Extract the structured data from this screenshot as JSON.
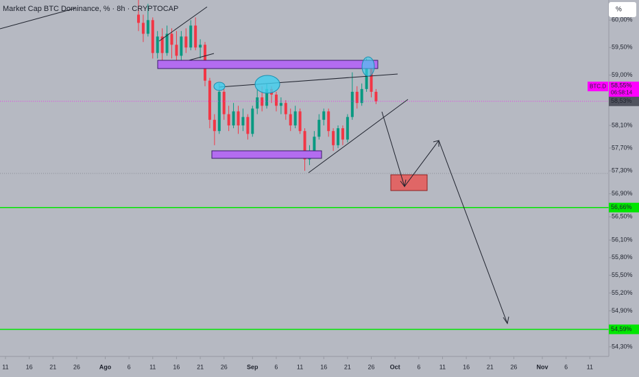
{
  "chart_data": {
    "type": "candlestick",
    "title": "Market Cap BTC Dominance, % · 8h · CRYPTOCAP",
    "unit_button": "%",
    "log_scale": true,
    "up_color": "#089981",
    "down_color": "#f23645",
    "ylim": [
      54.14,
      60.37
    ],
    "yticks": [
      {
        "value": 60,
        "label": "60,00%"
      },
      {
        "value": 59.5,
        "label": "59,50%"
      },
      {
        "value": 59,
        "label": "59,00%"
      },
      {
        "value": 58.1,
        "label": "58,10%"
      },
      {
        "value": 57.7,
        "label": "57,70%"
      },
      {
        "value": 57.3,
        "label": "57,30%"
      },
      {
        "value": 56.9,
        "label": "56,90%"
      },
      {
        "value": 56.5,
        "label": "56,50%"
      },
      {
        "value": 56.1,
        "label": "56,10%"
      },
      {
        "value": 55.8,
        "label": "55,80%"
      },
      {
        "value": 55.5,
        "label": "55,50%"
      },
      {
        "value": 55.2,
        "label": "55,20%"
      },
      {
        "value": 54.9,
        "label": "54,90%"
      },
      {
        "value": 54.3,
        "label": "54,30%"
      }
    ],
    "xlim": [
      -1.15,
      127
    ],
    "xticks": [
      {
        "value": 0,
        "label": "11"
      },
      {
        "value": 5,
        "label": "16"
      },
      {
        "value": 10,
        "label": "21"
      },
      {
        "value": 15,
        "label": "26"
      },
      {
        "value": 21,
        "label": "Ago"
      },
      {
        "value": 26,
        "label": "6"
      },
      {
        "value": 31,
        "label": "11"
      },
      {
        "value": 36,
        "label": "16"
      },
      {
        "value": 41,
        "label": "21"
      },
      {
        "value": 46,
        "label": "26"
      },
      {
        "value": 52,
        "label": "Sep"
      },
      {
        "value": 57,
        "label": "6"
      },
      {
        "value": 62,
        "label": "11"
      },
      {
        "value": 67,
        "label": "16"
      },
      {
        "value": 72,
        "label": "21"
      },
      {
        "value": 77,
        "label": "26"
      },
      {
        "value": 82,
        "label": "Oct"
      },
      {
        "value": 87,
        "label": "6"
      },
      {
        "value": 92,
        "label": "11"
      },
      {
        "value": 97,
        "label": "16"
      },
      {
        "value": 102,
        "label": "21"
      },
      {
        "value": 107,
        "label": "26"
      },
      {
        "value": 113,
        "label": "Nov"
      },
      {
        "value": 118,
        "label": "6"
      },
      {
        "value": 123,
        "label": "11"
      }
    ],
    "x": [
      28,
      29,
      30,
      31,
      32,
      33,
      34,
      35,
      36,
      37,
      38,
      39,
      40,
      41,
      42,
      43,
      44,
      45,
      46,
      47,
      48,
      49,
      50,
      51,
      52,
      53,
      54,
      55,
      56,
      57,
      58,
      59,
      60,
      61,
      62,
      63,
      64,
      65,
      66,
      67,
      68,
      69,
      70,
      71,
      72,
      73,
      74,
      75,
      76,
      77,
      78
    ],
    "open": [
      60.1,
      59.95,
      59.75,
      60.0,
      59.4,
      59.7,
      59.4,
      59.75,
      59.55,
      59.35,
      59.7,
      59.5,
      59.9,
      59.5,
      59.55,
      58.9,
      58.2,
      58.0,
      58.7,
      58.3,
      58.1,
      58.35,
      58.1,
      58.25,
      57.95,
      58.4,
      58.6,
      58.45,
      58.75,
      58.65,
      58.45,
      58.5,
      58.3,
      58.1,
      58.35,
      58.0,
      57.5,
      57.65,
      57.9,
      58.2,
      58.35,
      58.0,
      57.75,
      58.05,
      57.85,
      58.25,
      58.7,
      58.5,
      58.75,
      59.2,
      58.7
    ],
    "high": [
      60.37,
      60.1,
      60.3,
      60.05,
      59.8,
      59.85,
      59.9,
      59.85,
      59.8,
      59.8,
      59.85,
      60.0,
      60.05,
      59.65,
      59.6,
      58.95,
      58.3,
      58.85,
      58.75,
      58.45,
      58.5,
      58.45,
      58.4,
      58.3,
      58.45,
      58.75,
      58.8,
      58.85,
      58.8,
      58.7,
      58.6,
      58.55,
      58.4,
      58.45,
      58.4,
      58.05,
      57.75,
      58.0,
      58.3,
      58.4,
      58.4,
      58.05,
      58.1,
      58.1,
      58.3,
      59.05,
      58.8,
      58.85,
      59.3,
      59.25,
      58.75
    ],
    "low": [
      59.8,
      59.6,
      59.7,
      59.3,
      59.3,
      59.25,
      59.35,
      59.3,
      59.2,
      59.25,
      59.4,
      59.45,
      59.45,
      59.3,
      58.8,
      58.05,
      57.75,
      57.95,
      58.2,
      58.0,
      58.05,
      57.95,
      58.0,
      57.85,
      57.9,
      58.3,
      58.35,
      58.4,
      58.5,
      58.35,
      58.3,
      58.2,
      58.0,
      58.05,
      57.95,
      57.3,
      57.4,
      57.6,
      57.85,
      58.1,
      57.9,
      57.65,
      57.7,
      57.75,
      57.8,
      58.2,
      58.4,
      58.45,
      58.7,
      58.6,
      58.48
    ],
    "close": [
      59.95,
      59.75,
      60.0,
      59.4,
      59.7,
      59.4,
      59.75,
      59.55,
      59.35,
      59.7,
      59.5,
      59.9,
      59.5,
      59.55,
      58.9,
      58.2,
      58.0,
      58.7,
      58.3,
      58.1,
      58.35,
      58.1,
      58.25,
      57.95,
      58.4,
      58.6,
      58.45,
      58.75,
      58.65,
      58.45,
      58.5,
      58.3,
      58.1,
      58.35,
      58.0,
      57.5,
      57.65,
      57.9,
      58.2,
      58.35,
      58.0,
      57.75,
      58.05,
      57.85,
      58.25,
      58.7,
      58.5,
      58.75,
      59.2,
      58.7,
      58.53
    ],
    "hlines": [
      {
        "value": 56.66,
        "label": "56,66%",
        "color": "#00e600"
      },
      {
        "value": 54.59,
        "label": "54,59%",
        "color": "#00e600"
      }
    ],
    "last_price": {
      "value": 58.53,
      "label": "58,53%",
      "color": "#ff00ff"
    },
    "symbol_tag": {
      "name": "BTC.D",
      "value": 58.55,
      "label": "58,55%",
      "countdown": "06:58:14",
      "color": "#ff00ff"
    }
  }
}
